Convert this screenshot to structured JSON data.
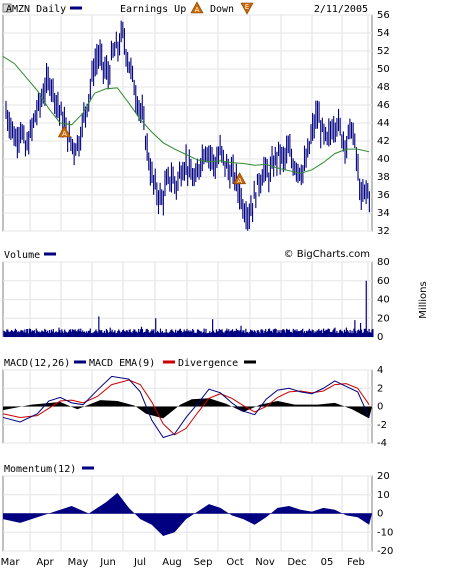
{
  "chart_data": [
    {
      "type": "line",
      "panel": "price",
      "title": "AMZN Daily",
      "date": "2/11/2005",
      "legend": [
        {
          "text": "Earnings Up",
          "marker": "A",
          "color": "#cc6600"
        },
        {
          "text": "Down",
          "marker": "E",
          "color": "#cc6600"
        }
      ],
      "ylim": [
        32,
        56
      ],
      "yticks": [
        "56",
        "54",
        "52",
        "50",
        "48",
        "46",
        "44",
        "42",
        "40",
        "38",
        "36",
        "34",
        "32"
      ],
      "series_color": "#000080",
      "ma_color": "#2e8b2e",
      "price": [
        [
          0,
          45.2
        ],
        [
          1,
          43.8
        ],
        [
          2,
          42.1
        ],
        [
          3,
          43.5
        ],
        [
          4,
          41.0
        ],
        [
          5,
          42.6
        ],
        [
          6,
          44.8
        ],
        [
          7,
          46.2
        ],
        [
          8,
          47.9
        ],
        [
          9,
          48.8
        ],
        [
          10,
          47.1
        ],
        [
          11,
          45.3
        ],
        [
          12,
          43.9
        ],
        [
          13,
          42.1
        ],
        [
          14,
          41.3
        ],
        [
          15,
          42.0
        ],
        [
          16,
          44.6
        ],
        [
          17,
          46.9
        ],
        [
          18,
          50.1
        ],
        [
          19,
          51.6
        ],
        [
          20,
          50.2
        ],
        [
          21,
          49.3
        ],
        [
          22,
          51.8
        ],
        [
          23,
          52.4
        ],
        [
          24,
          53.9
        ],
        [
          25,
          51.2
        ],
        [
          26,
          49.0
        ],
        [
          27,
          46.5
        ],
        [
          28,
          44.8
        ],
        [
          29,
          41.2
        ],
        [
          30,
          37.8
        ],
        [
          31,
          36.4
        ],
        [
          32,
          35.4
        ],
        [
          33,
          37.2
        ],
        [
          34,
          38.1
        ],
        [
          35,
          37.0
        ],
        [
          36,
          38.9
        ],
        [
          37,
          39.6
        ],
        [
          38,
          38.2
        ],
        [
          39,
          37.5
        ],
        [
          40,
          39.9
        ],
        [
          41,
          41.2
        ],
        [
          42,
          40.4
        ],
        [
          43,
          39.3
        ],
        [
          44,
          40.8
        ],
        [
          45,
          39.5
        ],
        [
          46,
          38.6
        ],
        [
          47,
          38.0
        ],
        [
          48,
          36.2
        ],
        [
          49,
          34.5
        ],
        [
          50,
          34.0
        ],
        [
          51,
          35.6
        ],
        [
          52,
          37.6
        ],
        [
          53,
          38.7
        ],
        [
          54,
          38.1
        ],
        [
          55,
          39.5
        ],
        [
          56,
          40.6
        ],
        [
          57,
          39.8
        ],
        [
          58,
          41.0
        ],
        [
          59,
          39.6
        ],
        [
          60,
          39.0
        ],
        [
          61,
          38.6
        ],
        [
          62,
          40.4
        ],
        [
          63,
          43.2
        ],
        [
          64,
          45.0
        ],
        [
          65,
          42.9
        ],
        [
          66,
          41.8
        ],
        [
          67,
          43.6
        ],
        [
          68,
          44.2
        ],
        [
          69,
          42.6
        ],
        [
          70,
          41.7
        ],
        [
          71,
          43.7
        ],
        [
          72,
          40.2
        ],
        [
          73,
          35.4
        ],
        [
          74,
          36.5
        ],
        [
          75,
          35.8
        ]
      ],
      "ma": [
        [
          0,
          51.4
        ],
        [
          4,
          50.6
        ],
        [
          8,
          49.1
        ],
        [
          12,
          47.6
        ],
        [
          16,
          45.6
        ],
        [
          20,
          44.0
        ],
        [
          24,
          43.8
        ],
        [
          28,
          45.1
        ],
        [
          32,
          47.3
        ],
        [
          36,
          47.8
        ],
        [
          40,
          47.9
        ],
        [
          44,
          46.2
        ],
        [
          48,
          44.4
        ],
        [
          52,
          43.0
        ],
        [
          56,
          41.8
        ],
        [
          60,
          41.1
        ],
        [
          64,
          40.5
        ],
        [
          68,
          39.9
        ],
        [
          72,
          39.7
        ],
        [
          76,
          39.8
        ],
        [
          80,
          39.6
        ],
        [
          84,
          39.5
        ],
        [
          88,
          39.3
        ],
        [
          92,
          39.4
        ],
        [
          96,
          39.0
        ],
        [
          100,
          38.7
        ],
        [
          104,
          38.4
        ],
        [
          108,
          38.8
        ],
        [
          112,
          39.6
        ],
        [
          116,
          40.6
        ],
        [
          120,
          41.1
        ],
        [
          124,
          41.1
        ],
        [
          128,
          40.8
        ]
      ],
      "earnings_markers": [
        {
          "x_idx": 12,
          "y": 43,
          "marker": "A"
        },
        {
          "x_idx": 48,
          "y": 37.8,
          "marker": "A"
        }
      ]
    },
    {
      "type": "bar",
      "panel": "volume",
      "title": "Volume",
      "watermark": "© BigCharts.com",
      "ylabel": "Millions",
      "ylim": [
        0,
        80
      ],
      "yticks": [
        "80",
        "60",
        "40",
        "20",
        "0"
      ],
      "color": "#000080",
      "spikes": [
        [
          0,
          6
        ],
        [
          11,
          9
        ],
        [
          19,
          10
        ],
        [
          30,
          9
        ],
        [
          33,
          22
        ],
        [
          37,
          10
        ],
        [
          48,
          11
        ],
        [
          53,
          20
        ],
        [
          63,
          8
        ],
        [
          70,
          9
        ],
        [
          73,
          19
        ],
        [
          78,
          9
        ],
        [
          83,
          12
        ],
        [
          90,
          8
        ],
        [
          95,
          9
        ],
        [
          100,
          8
        ],
        [
          108,
          8
        ],
        [
          112,
          9
        ],
        [
          116,
          10
        ],
        [
          120,
          10
        ],
        [
          123,
          18
        ],
        [
          125,
          15
        ],
        [
          127,
          60
        ],
        [
          129,
          8
        ]
      ]
    },
    {
      "type": "line",
      "panel": "macd",
      "title": "MACD(12,26)",
      "legend": [
        {
          "text": "MACD EMA(9)",
          "color": "#000080"
        },
        {
          "text": "Divergence",
          "color": "#cc0000"
        }
      ],
      "ylim": [
        -4,
        4
      ],
      "yticks": [
        "4",
        "2",
        "0",
        "-2",
        "-4"
      ],
      "macd": [
        [
          0,
          -1.2
        ],
        [
          6,
          -1.7
        ],
        [
          12,
          -0.8
        ],
        [
          16,
          0.6
        ],
        [
          20,
          1.0
        ],
        [
          24,
          0.4
        ],
        [
          28,
          0.2
        ],
        [
          33,
          1.8
        ],
        [
          38,
          3.3
        ],
        [
          44,
          3.0
        ],
        [
          48,
          1.6
        ],
        [
          52,
          -1.5
        ],
        [
          56,
          -3.4
        ],
        [
          60,
          -3.0
        ],
        [
          64,
          -1.2
        ],
        [
          68,
          0.3
        ],
        [
          72,
          1.9
        ],
        [
          76,
          1.5
        ],
        [
          80,
          0.4
        ],
        [
          84,
          -0.5
        ],
        [
          88,
          -0.9
        ],
        [
          92,
          0.8
        ],
        [
          96,
          1.8
        ],
        [
          100,
          2.0
        ],
        [
          104,
          1.6
        ],
        [
          108,
          1.4
        ],
        [
          112,
          2.0
        ],
        [
          116,
          2.8
        ],
        [
          120,
          2.2
        ],
        [
          124,
          1.6
        ],
        [
          128,
          -1.2
        ]
      ],
      "ema": [
        [
          0,
          -0.8
        ],
        [
          6,
          -1.2
        ],
        [
          12,
          -1.0
        ],
        [
          16,
          -0.2
        ],
        [
          20,
          0.6
        ],
        [
          24,
          0.7
        ],
        [
          28,
          0.4
        ],
        [
          33,
          1.1
        ],
        [
          38,
          2.4
        ],
        [
          44,
          2.9
        ],
        [
          48,
          2.4
        ],
        [
          52,
          0.5
        ],
        [
          56,
          -1.9
        ],
        [
          60,
          -3.1
        ],
        [
          64,
          -2.4
        ],
        [
          68,
          -0.7
        ],
        [
          72,
          0.9
        ],
        [
          76,
          1.4
        ],
        [
          80,
          0.9
        ],
        [
          84,
          0.1
        ],
        [
          88,
          -0.6
        ],
        [
          92,
          0.0
        ],
        [
          96,
          1.0
        ],
        [
          100,
          1.6
        ],
        [
          104,
          1.7
        ],
        [
          108,
          1.5
        ],
        [
          112,
          1.7
        ],
        [
          116,
          2.4
        ],
        [
          120,
          2.5
        ],
        [
          124,
          2.0
        ],
        [
          128,
          0.2
        ]
      ],
      "divergence": [
        [
          0,
          -0.4
        ],
        [
          10,
          0.2
        ],
        [
          20,
          0.5
        ],
        [
          26,
          -0.3
        ],
        [
          34,
          0.7
        ],
        [
          40,
          0.6
        ],
        [
          46,
          0.1
        ],
        [
          50,
          -0.8
        ],
        [
          56,
          -1.3
        ],
        [
          62,
          0.2
        ],
        [
          66,
          0.8
        ],
        [
          72,
          0.9
        ],
        [
          78,
          0.3
        ],
        [
          84,
          -0.6
        ],
        [
          90,
          0.2
        ],
        [
          96,
          0.6
        ],
        [
          102,
          0.2
        ],
        [
          110,
          0.2
        ],
        [
          116,
          0.4
        ],
        [
          122,
          -0.3
        ],
        [
          128,
          -1.3
        ]
      ]
    },
    {
      "type": "area",
      "panel": "momentum",
      "title": "Momentum(12)",
      "ylim": [
        -20,
        20
      ],
      "yticks": [
        "20",
        "10",
        "0",
        "-10",
        "-20"
      ],
      "color": "#000080",
      "values": [
        [
          0,
          -3
        ],
        [
          6,
          -5
        ],
        [
          12,
          -2
        ],
        [
          18,
          1
        ],
        [
          24,
          4
        ],
        [
          30,
          0
        ],
        [
          36,
          6
        ],
        [
          40,
          11
        ],
        [
          44,
          3
        ],
        [
          48,
          -3
        ],
        [
          52,
          -6
        ],
        [
          56,
          -12
        ],
        [
          60,
          -10
        ],
        [
          64,
          -3
        ],
        [
          68,
          1
        ],
        [
          72,
          5
        ],
        [
          76,
          3
        ],
        [
          80,
          -1
        ],
        [
          84,
          -3
        ],
        [
          88,
          -6
        ],
        [
          92,
          -2
        ],
        [
          96,
          3
        ],
        [
          100,
          4
        ],
        [
          104,
          2
        ],
        [
          108,
          1
        ],
        [
          112,
          3
        ],
        [
          116,
          2
        ],
        [
          120,
          -1
        ],
        [
          124,
          -2
        ],
        [
          128,
          -6
        ]
      ]
    }
  ],
  "x_axis": {
    "labels": [
      "Mar",
      "Apr",
      "May",
      "Jun",
      "Jul",
      "Aug",
      "Sep",
      "Oct",
      "Nov",
      "Dec",
      "05",
      "Feb"
    ]
  }
}
